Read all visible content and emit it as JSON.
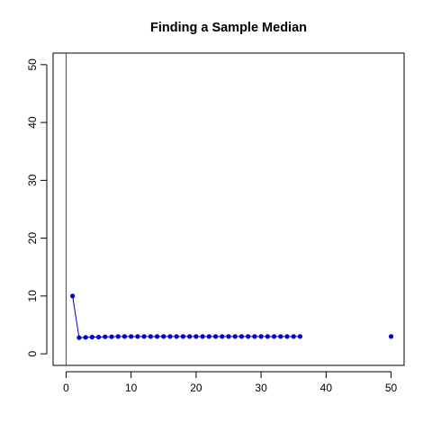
{
  "chart_data": {
    "type": "scatter",
    "title": "Finding a Sample Median",
    "xlabel": "",
    "ylabel": "",
    "xlim": [
      -2,
      52
    ],
    "ylim": [
      -2,
      52
    ],
    "x_ticks": [
      "0",
      "10",
      "20",
      "30",
      "40",
      "50"
    ],
    "y_ticks": [
      "0",
      "10",
      "20",
      "30",
      "40",
      "50"
    ],
    "grid": false,
    "vertical_line": {
      "x": 0,
      "color": "#ff0000"
    },
    "series": [
      {
        "color": "#0000cc",
        "connected": true,
        "x": [
          1,
          2,
          3,
          4,
          5,
          6,
          7,
          8,
          9,
          10,
          11,
          12,
          13,
          14,
          15,
          16,
          17,
          18,
          19,
          20,
          21,
          22,
          23,
          24,
          25,
          26,
          27,
          28,
          29,
          30,
          31,
          32,
          33,
          34,
          35,
          36
        ],
        "y": [
          10,
          2.8,
          2.85,
          2.9,
          2.9,
          2.95,
          2.95,
          3,
          3,
          3,
          3,
          3,
          3,
          3,
          3,
          3,
          3,
          3,
          3,
          3,
          3,
          3,
          3,
          3,
          3,
          3,
          3,
          3,
          3,
          3,
          3,
          3,
          3,
          3,
          3,
          3
        ]
      },
      {
        "color": "#0000cc",
        "connected": false,
        "x": [
          50
        ],
        "y": [
          3
        ]
      }
    ]
  }
}
